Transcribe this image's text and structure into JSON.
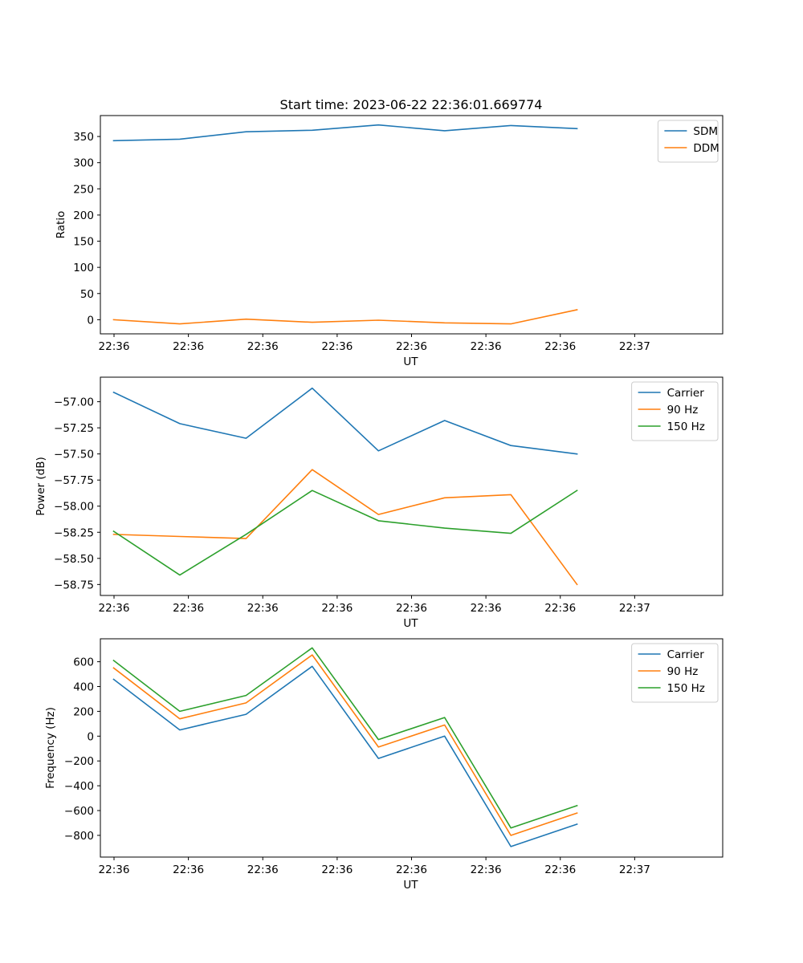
{
  "figure_title": "Start time: 2023-06-22 22:36:01.669774",
  "colors": {
    "blue": "#1f77b4",
    "orange": "#ff7f0e",
    "green": "#2ca02c"
  },
  "chart_data": [
    {
      "type": "line",
      "title": "Start time: 2023-06-22 22:36:01.669774",
      "xlabel": "UT",
      "ylabel": "Ratio",
      "x_tick_labels": [
        "22:36",
        "22:36",
        "22:36",
        "22:36",
        "22:36",
        "22:36",
        "22:36"
      ],
      "x_tick_last": "22:37",
      "x": [
        1,
        2,
        3,
        4,
        5,
        6,
        7,
        8
      ],
      "xlim": [
        0.8,
        10.2
      ],
      "y_ticks": [
        0,
        50,
        100,
        150,
        200,
        250,
        300,
        350
      ],
      "ylim": [
        -27,
        390
      ],
      "legend_position": "top-right",
      "grid": false,
      "series": [
        {
          "name": "SDM",
          "color": "#1f77b4",
          "values": [
            342,
            345,
            359,
            362,
            372,
            361,
            371,
            365
          ]
        },
        {
          "name": "DDM",
          "color": "#ff7f0e",
          "values": [
            0,
            -8,
            1,
            -5,
            -1,
            -6,
            -8,
            19
          ]
        }
      ]
    },
    {
      "type": "line",
      "xlabel": "UT",
      "ylabel": "Power (dB)",
      "x_tick_labels": [
        "22:36",
        "22:36",
        "22:36",
        "22:36",
        "22:36",
        "22:36",
        "22:36"
      ],
      "x_tick_last": "22:37",
      "x": [
        1,
        2,
        3,
        4,
        5,
        6,
        7,
        8
      ],
      "xlim": [
        0.8,
        10.2
      ],
      "y_ticks": [
        -58.75,
        -58.5,
        -58.25,
        -58.0,
        -57.75,
        -57.5,
        -57.25,
        -57.0
      ],
      "y_tick_labels": [
        "−58.75",
        "−58.50",
        "−58.25",
        "−58.00",
        "−57.75",
        "−57.50",
        "−57.25",
        "−57.00"
      ],
      "ylim": [
        -58.855,
        -56.765
      ],
      "legend_position": "top-right",
      "grid": false,
      "series": [
        {
          "name": "Carrier",
          "color": "#1f77b4",
          "values": [
            -56.91,
            -57.21,
            -57.35,
            -56.87,
            -57.47,
            -57.18,
            -57.42,
            -57.5
          ]
        },
        {
          "name": "90 Hz",
          "color": "#ff7f0e",
          "values": [
            -58.27,
            -58.29,
            -58.31,
            -57.65,
            -58.08,
            -57.92,
            -57.89,
            -58.75
          ]
        },
        {
          "name": "150 Hz",
          "color": "#2ca02c",
          "values": [
            -58.24,
            -58.66,
            -58.27,
            -57.85,
            -58.14,
            -58.21,
            -58.26,
            -57.85
          ]
        }
      ]
    },
    {
      "type": "line",
      "xlabel": "UT",
      "ylabel": "Frequency (Hz)",
      "x_tick_labels": [
        "22:36",
        "22:36",
        "22:36",
        "22:36",
        "22:36",
        "22:36",
        "22:36"
      ],
      "x_tick_last": "22:37",
      "x": [
        1,
        2,
        3,
        4,
        5,
        6,
        7,
        8
      ],
      "xlim": [
        0.8,
        10.2
      ],
      "y_ticks": [
        -800,
        -600,
        -400,
        -200,
        0,
        200,
        400,
        600
      ],
      "y_tick_labels": [
        "−800",
        "−600",
        "−400",
        "−200",
        "0",
        "200",
        "400",
        "600"
      ],
      "ylim": [
        -975,
        785
      ],
      "legend_position": "top-right",
      "grid": false,
      "series": [
        {
          "name": "Carrier",
          "color": "#1f77b4",
          "values": [
            458,
            50,
            176,
            563,
            -180,
            0,
            -890,
            -710
          ]
        },
        {
          "name": "90 Hz",
          "color": "#ff7f0e",
          "values": [
            550,
            140,
            268,
            655,
            -88,
            90,
            -800,
            -620
          ]
        },
        {
          "name": "150 Hz",
          "color": "#2ca02c",
          "values": [
            610,
            200,
            328,
            712,
            -28,
            150,
            -740,
            -560
          ]
        }
      ]
    }
  ]
}
